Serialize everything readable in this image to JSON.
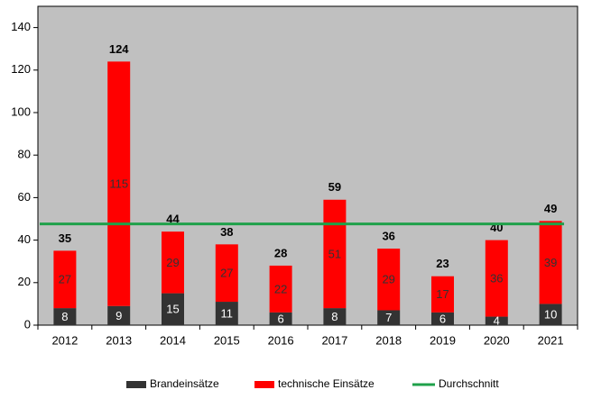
{
  "chart_data": {
    "type": "bar",
    "stacked": true,
    "categories": [
      "2012",
      "2013",
      "2014",
      "2015",
      "2016",
      "2017",
      "2018",
      "2019",
      "2020",
      "2021"
    ],
    "series": [
      {
        "name": "Brandeinsätze",
        "color": "#333333",
        "label_color": "#ffffff",
        "values": [
          8,
          9,
          15,
          11,
          6,
          8,
          7,
          6,
          4,
          10
        ]
      },
      {
        "name": "technische Einsätze",
        "color": "#ff0000",
        "label_color": "#333333",
        "values": [
          27,
          115,
          29,
          27,
          22,
          51,
          29,
          17,
          36,
          39
        ]
      }
    ],
    "totals": [
      35,
      124,
      44,
      38,
      28,
      59,
      36,
      23,
      40,
      49
    ],
    "average": {
      "name": "Durchschnitt",
      "color": "#1fa14a",
      "value": 47.6
    },
    "ylim": [
      0,
      150
    ],
    "yticks": [
      0,
      20,
      40,
      60,
      80,
      100,
      120,
      140
    ],
    "plot_background": "#c0c0c0"
  }
}
